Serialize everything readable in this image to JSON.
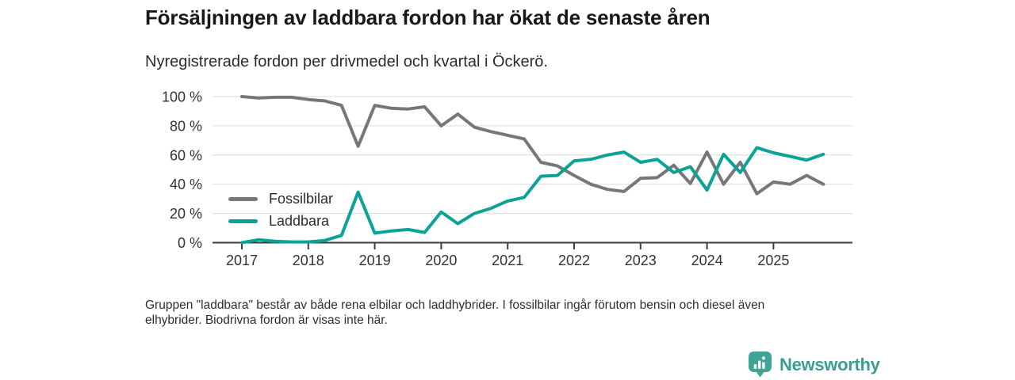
{
  "header": {
    "title": "Försäljningen av laddbara fordon har ökat de senaste åren",
    "subtitle": "Nyregistrerade fordon per drivmedel och kvartal i Öckerö."
  },
  "footer": {
    "note_lines": [
      "Gruppen \"laddbara\" består av både rena elbilar och laddhybrider. I fossilbilar ingår förutom bensin och diesel även",
      "elhybrider. Biodrivna fordon är visas inte här."
    ]
  },
  "branding": {
    "logo_text": "Newsworthy",
    "logo_icon": "bar-chart-pin-icon",
    "logo_color": "#43a296",
    "wordmark_color": "#3b9d92"
  },
  "colors": {
    "grid": "#dcdcdc",
    "axis": "#3e3e3e",
    "tick_label": "#333333",
    "title_text": "#191919"
  },
  "chart_data": {
    "type": "line",
    "title": "Försäljningen av laddbara fordon har ökat de senaste åren",
    "subtitle": "Nyregistrerade fordon per drivmedel och kvartal i Öckerö.",
    "x_unit": "quarter",
    "x_range": {
      "start": "2017 Q1",
      "end": "2025 Q4"
    },
    "x_tick_labels": [
      "2017",
      "2018",
      "2019",
      "2020",
      "2021",
      "2022",
      "2023",
      "2024",
      "2025"
    ],
    "y_tick_labels": [
      "0 %",
      "20 %",
      "40 %",
      "60 %",
      "80 %",
      "100 %"
    ],
    "ylim": [
      0,
      100
    ],
    "grid": true,
    "legend_position": "inside-left",
    "series": [
      {
        "name": "Fossilbilar",
        "color": "#76777a",
        "values": [
          100,
          99,
          99.5,
          99.5,
          98,
          97,
          94,
          66,
          94,
          92,
          91.5,
          93,
          80,
          88,
          79,
          76,
          73.5,
          71,
          55,
          52.5,
          46,
          40,
          36.5,
          35,
          44,
          44.5,
          53,
          40.5,
          62,
          40,
          55,
          33.5,
          41.5,
          40,
          46,
          40
        ]
      },
      {
        "name": "Laddbara",
        "color": "#0aa396",
        "values": [
          0,
          2,
          1,
          0.5,
          0.5,
          1.5,
          5,
          34.5,
          6.5,
          8,
          9,
          7,
          21,
          13,
          20,
          23.5,
          28.5,
          31,
          45.5,
          46,
          56,
          57,
          60,
          62,
          55,
          57,
          48,
          52,
          36,
          60.5,
          48,
          65,
          61.5,
          59,
          56.5,
          60.5
        ]
      }
    ]
  }
}
